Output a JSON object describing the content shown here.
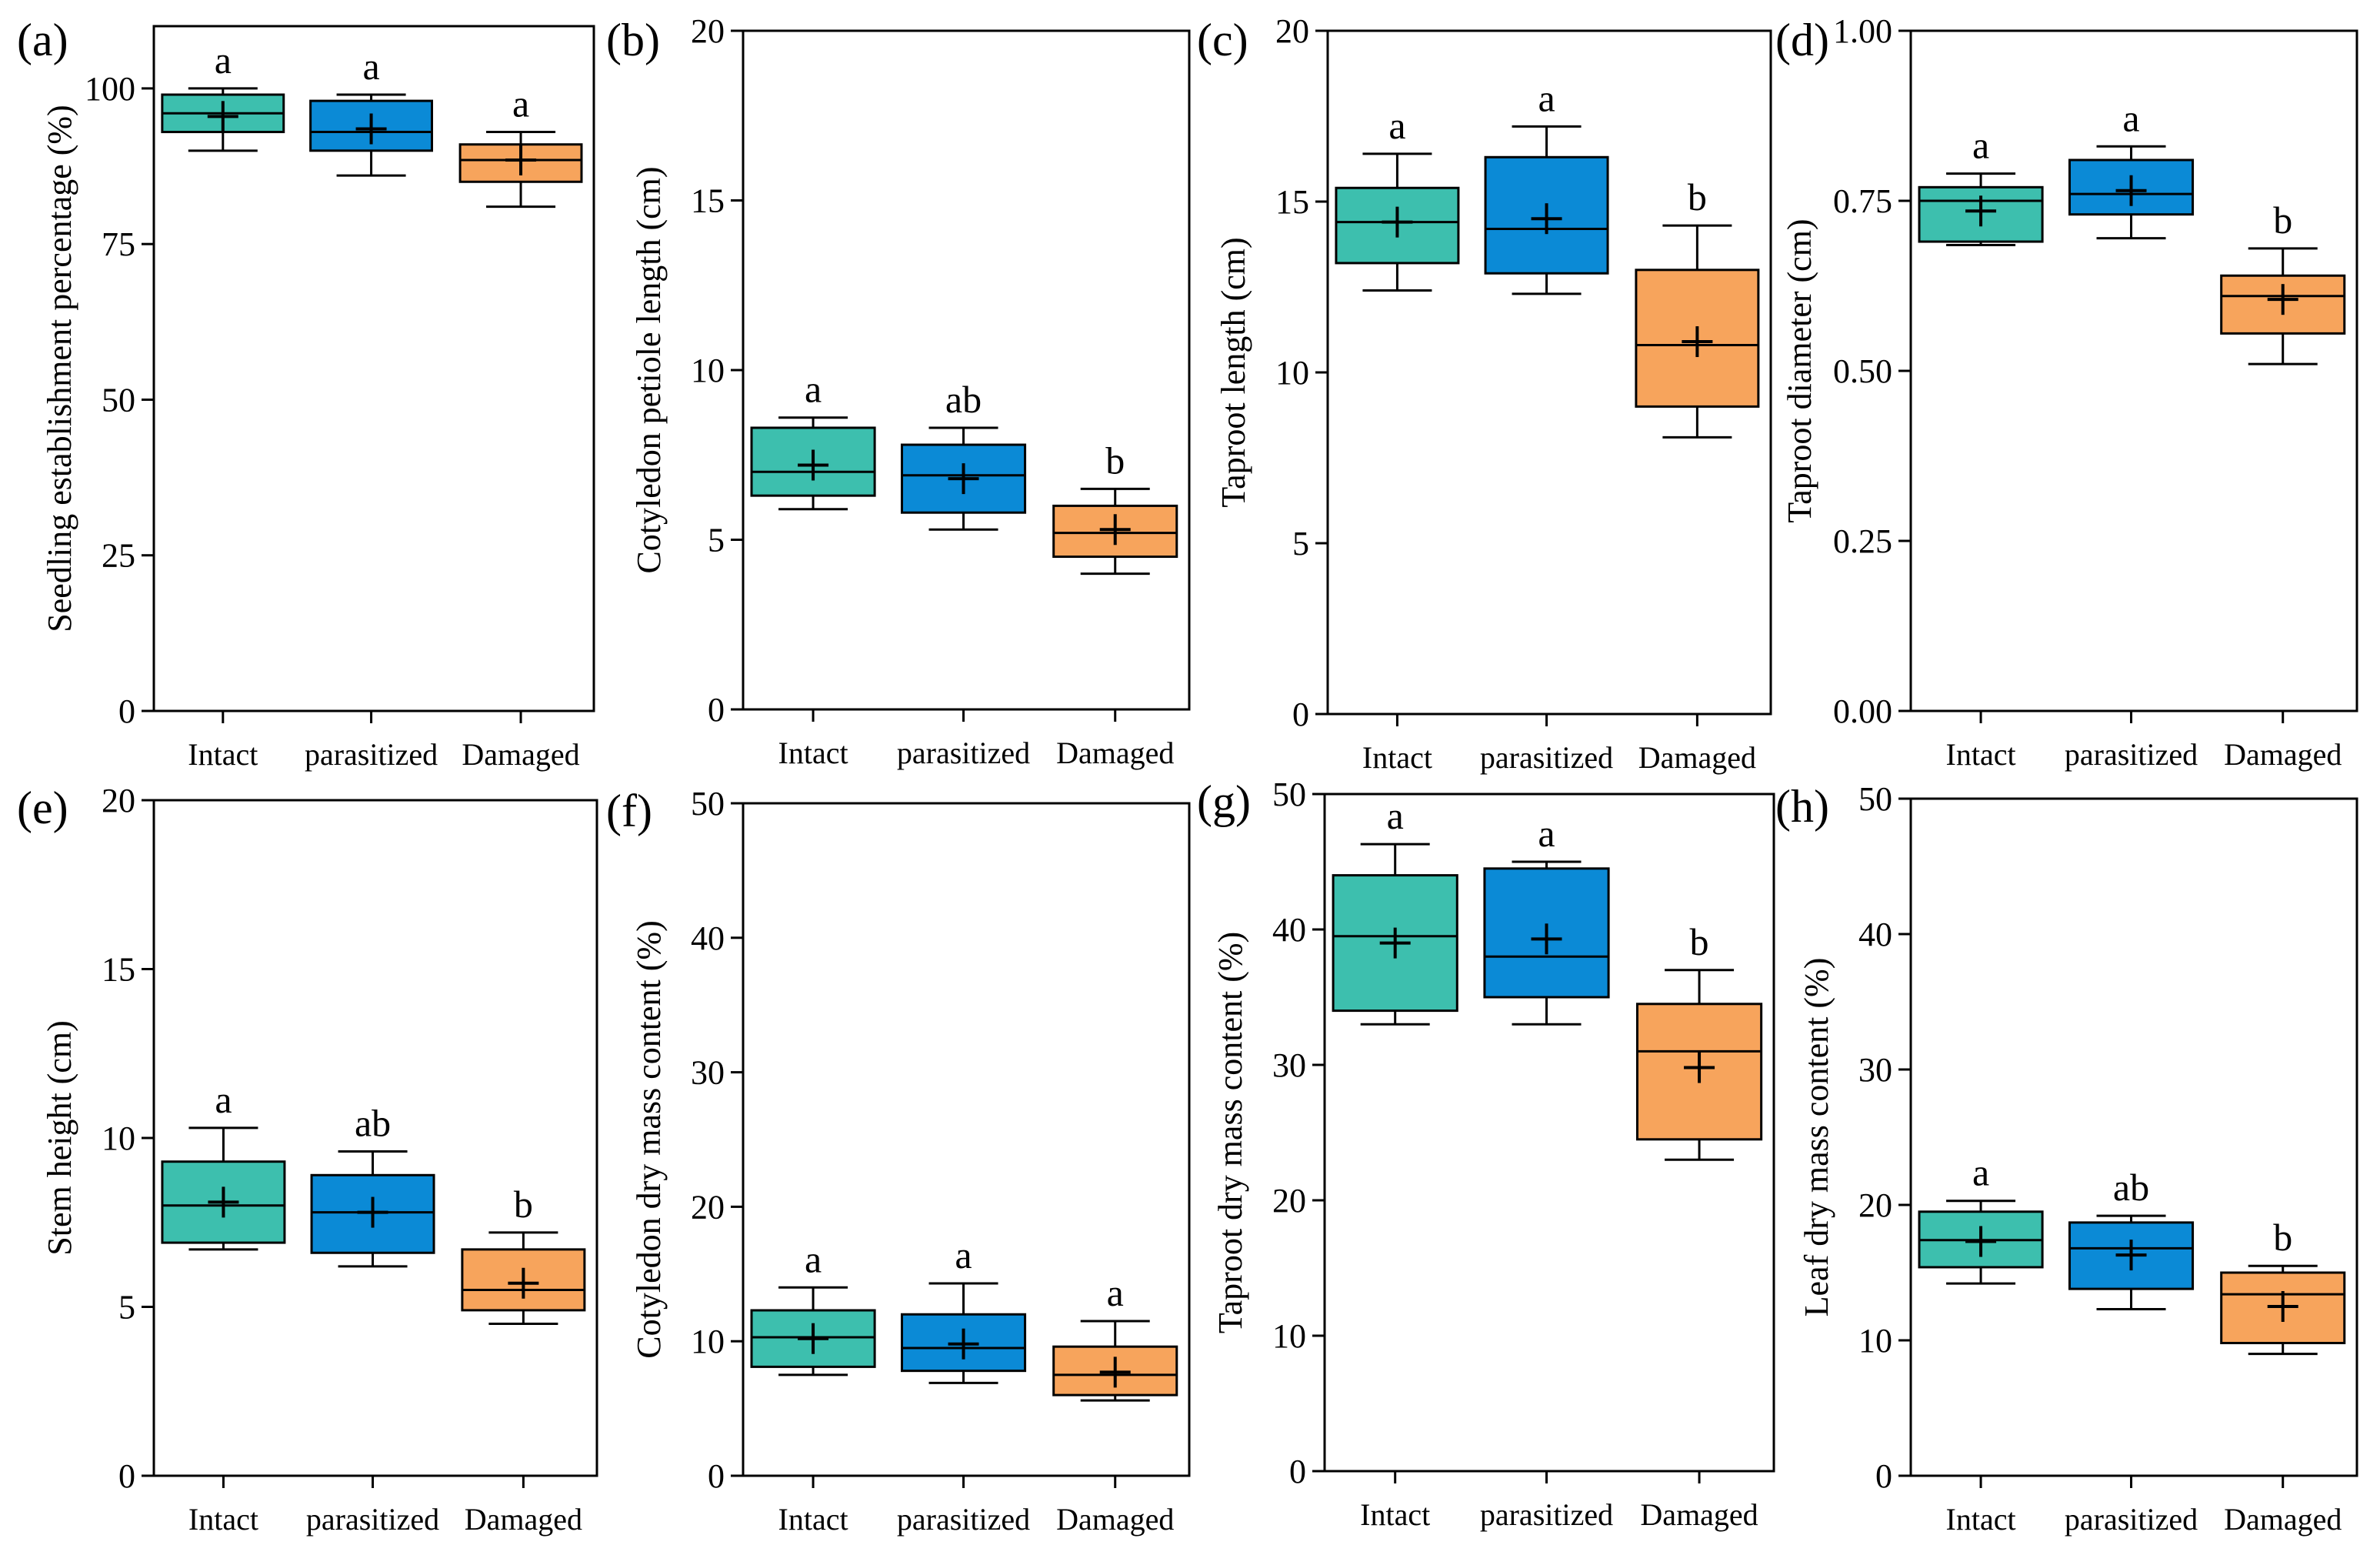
{
  "colors": {
    "Intact": "#3dbfae",
    "parasitized": "#0b8ad6",
    "Damaged": "#f7a45c"
  },
  "chart_data": [
    {
      "type": "box",
      "panel": "(a)",
      "categories": [
        "Intact",
        "parasitized",
        "Damaged"
      ],
      "ylabel": "Seedling establishment percentage (%)",
      "ylim": [
        0,
        110
      ],
      "yticks": [
        0,
        25,
        50,
        75,
        100
      ],
      "boxes": [
        {
          "whislo": 90,
          "q1": 93,
          "med": 96,
          "q3": 99,
          "whishi": 100,
          "mean": 95.5,
          "letter": "a"
        },
        {
          "whislo": 86,
          "q1": 90,
          "med": 93,
          "q3": 98,
          "whishi": 99,
          "mean": 93.5,
          "letter": "a"
        },
        {
          "whislo": 81,
          "q1": 85,
          "med": 88.5,
          "q3": 91,
          "whishi": 93,
          "mean": 88.5,
          "letter": "a"
        }
      ]
    },
    {
      "type": "box",
      "panel": "(b)",
      "categories": [
        "Intact",
        "parasitized",
        "Damaged"
      ],
      "ylabel": "Cotyledon petiole length (cm)",
      "ylim": [
        0,
        20
      ],
      "yticks": [
        0,
        5,
        10,
        15,
        20
      ],
      "boxes": [
        {
          "whislo": 5.9,
          "q1": 6.3,
          "med": 7.0,
          "q3": 8.3,
          "whishi": 8.6,
          "mean": 7.2,
          "letter": "a"
        },
        {
          "whislo": 5.3,
          "q1": 5.8,
          "med": 6.9,
          "q3": 7.8,
          "whishi": 8.3,
          "mean": 6.8,
          "letter": "ab"
        },
        {
          "whislo": 4.0,
          "q1": 4.5,
          "med": 5.2,
          "q3": 6.0,
          "whishi": 6.5,
          "mean": 5.3,
          "letter": "b"
        }
      ]
    },
    {
      "type": "box",
      "panel": "(c)",
      "categories": [
        "Intact",
        "parasitized",
        "Damaged"
      ],
      "ylabel": "Taproot length (cm)",
      "ylim": [
        0,
        20
      ],
      "yticks": [
        0,
        5,
        10,
        15,
        20
      ],
      "boxes": [
        {
          "whislo": 12.4,
          "q1": 13.2,
          "med": 14.4,
          "q3": 15.4,
          "whishi": 16.4,
          "mean": 14.4,
          "letter": "a"
        },
        {
          "whislo": 12.3,
          "q1": 12.9,
          "med": 14.2,
          "q3": 16.3,
          "whishi": 17.2,
          "mean": 14.5,
          "letter": "a"
        },
        {
          "whislo": 8.1,
          "q1": 9.0,
          "med": 10.8,
          "q3": 13.0,
          "whishi": 14.3,
          "mean": 10.9,
          "letter": "b"
        }
      ]
    },
    {
      "type": "box",
      "panel": "(d)",
      "categories": [
        "Intact",
        "parasitized",
        "Damaged"
      ],
      "ylabel": "Taproot diameter (cm)",
      "ylim": [
        0,
        1
      ],
      "yticks": [
        0,
        0.25,
        0.5,
        0.75,
        1
      ],
      "ytick_labels": [
        "0.00",
        "0.25",
        "0.50",
        "0.75",
        "1.00"
      ],
      "boxes": [
        {
          "whislo": 0.685,
          "q1": 0.69,
          "med": 0.75,
          "q3": 0.77,
          "whishi": 0.79,
          "mean": 0.735,
          "letter": "a"
        },
        {
          "whislo": 0.695,
          "q1": 0.73,
          "med": 0.76,
          "q3": 0.81,
          "whishi": 0.83,
          "mean": 0.765,
          "letter": "a"
        },
        {
          "whislo": 0.51,
          "q1": 0.555,
          "med": 0.61,
          "q3": 0.64,
          "whishi": 0.68,
          "mean": 0.605,
          "letter": "b"
        }
      ]
    },
    {
      "type": "box",
      "panel": "(e)",
      "categories": [
        "Intact",
        "parasitized",
        "Damaged"
      ],
      "ylabel": "Stem height (cm)",
      "ylim": [
        0,
        20
      ],
      "yticks": [
        0,
        5,
        10,
        15,
        20
      ],
      "boxes": [
        {
          "whislo": 6.7,
          "q1": 6.9,
          "med": 8.0,
          "q3": 9.3,
          "whishi": 10.3,
          "mean": 8.1,
          "letter": "a"
        },
        {
          "whislo": 6.2,
          "q1": 6.6,
          "med": 7.8,
          "q3": 8.9,
          "whishi": 9.6,
          "mean": 7.8,
          "letter": "ab"
        },
        {
          "whislo": 4.5,
          "q1": 4.9,
          "med": 5.5,
          "q3": 6.7,
          "whishi": 7.2,
          "mean": 5.7,
          "letter": "b"
        }
      ]
    },
    {
      "type": "box",
      "panel": "(f)",
      "categories": [
        "Intact",
        "parasitized",
        "Damaged"
      ],
      "ylabel": "Cotyledon dry mass content (%)",
      "ylim": [
        0,
        50
      ],
      "yticks": [
        0,
        10,
        20,
        30,
        40,
        50
      ],
      "boxes": [
        {
          "whislo": 7.5,
          "q1": 8.1,
          "med": 10.3,
          "q3": 12.3,
          "whishi": 14.0,
          "mean": 10.2,
          "letter": "a"
        },
        {
          "whislo": 6.9,
          "q1": 7.8,
          "med": 9.5,
          "q3": 12.0,
          "whishi": 14.3,
          "mean": 9.8,
          "letter": "a"
        },
        {
          "whislo": 5.6,
          "q1": 6.0,
          "med": 7.5,
          "q3": 9.6,
          "whishi": 11.5,
          "mean": 7.7,
          "letter": "a"
        }
      ]
    },
    {
      "type": "box",
      "panel": "(g)",
      "categories": [
        "Intact",
        "parasitized",
        "Damaged"
      ],
      "ylabel": "Taproot dry mass content (%)",
      "ylim": [
        0,
        50
      ],
      "yticks": [
        0,
        10,
        20,
        30,
        40,
        50
      ],
      "boxes": [
        {
          "whislo": 33,
          "q1": 34,
          "med": 39.5,
          "q3": 44,
          "whishi": 46.3,
          "mean": 39,
          "letter": "a"
        },
        {
          "whislo": 33,
          "q1": 35,
          "med": 38,
          "q3": 44.5,
          "whishi": 45,
          "mean": 39.3,
          "letter": "a"
        },
        {
          "whislo": 23,
          "q1": 24.5,
          "med": 31,
          "q3": 34.5,
          "whishi": 37,
          "mean": 29.8,
          "letter": "b"
        }
      ]
    },
    {
      "type": "box",
      "panel": "(h)",
      "categories": [
        "Intact",
        "parasitized",
        "Damaged"
      ],
      "ylabel": "Leaf dry mass content (%)",
      "ylim": [
        0,
        50
      ],
      "yticks": [
        0,
        10,
        20,
        30,
        40,
        50
      ],
      "boxes": [
        {
          "whislo": 14.2,
          "q1": 15.4,
          "med": 17.4,
          "q3": 19.5,
          "whishi": 20.3,
          "mean": 17.3,
          "letter": "a"
        },
        {
          "whislo": 12.3,
          "q1": 13.8,
          "med": 16.8,
          "q3": 18.7,
          "whishi": 19.2,
          "mean": 16.3,
          "letter": "ab"
        },
        {
          "whislo": 9.0,
          "q1": 9.8,
          "med": 13.4,
          "q3": 15.0,
          "whishi": 15.5,
          "mean": 12.5,
          "letter": "b"
        }
      ]
    }
  ]
}
